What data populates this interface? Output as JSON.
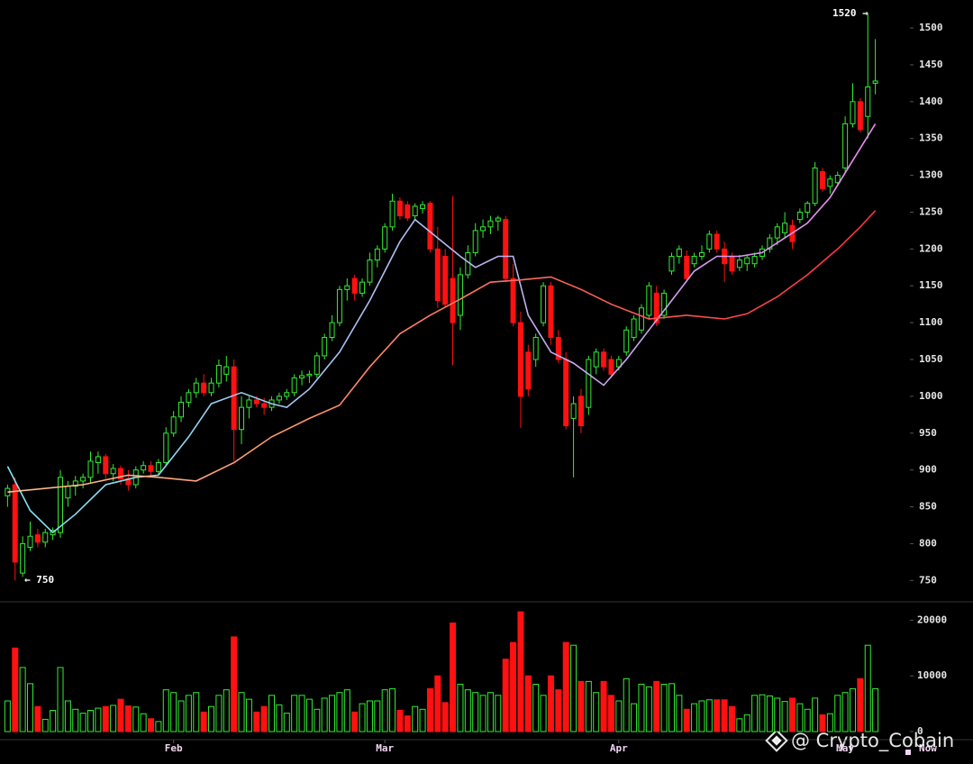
{
  "chart_data": {
    "type": "candlestick",
    "xlim": [
      -1,
      116
    ],
    "xticks": [
      {
        "value": 22,
        "label": "Feb"
      },
      {
        "value": 50,
        "label": "Mar"
      },
      {
        "value": 81,
        "label": "Apr"
      },
      {
        "value": 111,
        "label": "May"
      }
    ],
    "ylim": [
      721,
      1538
    ],
    "yticks": [
      750,
      800,
      850,
      900,
      950,
      1000,
      1050,
      1100,
      1150,
      1200,
      1250,
      1300,
      1350,
      1400,
      1450,
      1500
    ],
    "up_color": "#33ee33",
    "down_color": "#ff1111",
    "open": [
      865,
      880,
      760,
      795,
      812,
      802,
      812,
      815,
      862,
      878,
      885,
      890,
      910,
      918,
      895,
      902,
      888,
      880,
      900,
      906,
      898,
      910,
      950,
      972,
      992,
      1005,
      1018,
      1005,
      1018,
      1030,
      1040,
      955,
      985,
      995,
      990,
      985,
      995,
      1000,
      1005,
      1025,
      1028,
      1030,
      1055,
      1080,
      1100,
      1145,
      1160,
      1140,
      1155,
      1185,
      1200,
      1230,
      1265,
      1260,
      1245,
      1255,
      1262,
      1200,
      1190,
      1160,
      1110,
      1165,
      1195,
      1225,
      1230,
      1238,
      1240,
      1160,
      1100,
      1060,
      1050,
      1100,
      1150,
      1080,
      1050,
      970,
      1000,
      985,
      1040,
      1060,
      1050,
      1040,
      1060,
      1080,
      1090,
      1110,
      1140,
      1110,
      1170,
      1190,
      1190,
      1180,
      1190,
      1200,
      1220,
      1200,
      1190,
      1175,
      1180,
      1180,
      1190,
      1200,
      1215,
      1222,
      1232,
      1240,
      1250,
      1262,
      1305,
      1285,
      1290,
      1310,
      1370,
      1400,
      1380,
      1425
    ],
    "high": [
      880,
      890,
      810,
      830,
      820,
      820,
      822,
      900,
      885,
      892,
      895,
      925,
      925,
      922,
      908,
      906,
      900,
      905,
      912,
      912,
      915,
      958,
      980,
      1000,
      1010,
      1025,
      1030,
      1025,
      1050,
      1055,
      1050,
      1000,
      1000,
      1000,
      998,
      1000,
      1005,
      1010,
      1030,
      1035,
      1035,
      1060,
      1085,
      1110,
      1150,
      1160,
      1165,
      1160,
      1195,
      1205,
      1235,
      1275,
      1270,
      1265,
      1262,
      1265,
      1265,
      1230,
      1200,
      1272,
      1175,
      1205,
      1235,
      1240,
      1245,
      1245,
      1245,
      1180,
      1115,
      1070,
      1085,
      1155,
      1155,
      1090,
      1060,
      1000,
      1010,
      1055,
      1065,
      1065,
      1055,
      1055,
      1095,
      1110,
      1125,
      1155,
      1150,
      1145,
      1195,
      1205,
      1198,
      1195,
      1205,
      1225,
      1225,
      1210,
      1195,
      1192,
      1192,
      1195,
      1205,
      1220,
      1235,
      1250,
      1240,
      1255,
      1265,
      1318,
      1310,
      1300,
      1305,
      1380,
      1425,
      1405,
      1520,
      1485
    ],
    "low": [
      850,
      750,
      755,
      790,
      795,
      795,
      805,
      808,
      850,
      865,
      875,
      882,
      895,
      888,
      885,
      880,
      872,
      875,
      895,
      890,
      894,
      905,
      945,
      965,
      985,
      998,
      1000,
      1000,
      1012,
      1020,
      912,
      935,
      970,
      985,
      975,
      980,
      990,
      995,
      1000,
      1015,
      1018,
      1025,
      1050,
      1075,
      1095,
      1130,
      1130,
      1135,
      1150,
      1175,
      1195,
      1225,
      1240,
      1238,
      1240,
      1248,
      1195,
      1120,
      1120,
      1042,
      1090,
      1160,
      1190,
      1215,
      1220,
      1225,
      1155,
      1095,
      957,
      1000,
      1040,
      1095,
      1070,
      1045,
      955,
      890,
      950,
      975,
      1030,
      1035,
      1025,
      1035,
      1055,
      1075,
      1085,
      1105,
      1095,
      1105,
      1165,
      1180,
      1155,
      1175,
      1185,
      1195,
      1195,
      1155,
      1165,
      1170,
      1170,
      1175,
      1185,
      1195,
      1205,
      1215,
      1200,
      1235,
      1242,
      1258,
      1278,
      1275,
      1285,
      1305,
      1365,
      1358,
      1350,
      1410
    ],
    "close": [
      875,
      775,
      800,
      810,
      802,
      815,
      818,
      890,
      878,
      885,
      890,
      912,
      918,
      895,
      902,
      888,
      880,
      900,
      906,
      898,
      910,
      950,
      972,
      992,
      1005,
      1018,
      1005,
      1018,
      1042,
      1040,
      955,
      985,
      995,
      990,
      985,
      995,
      1000,
      1005,
      1025,
      1028,
      1030,
      1055,
      1080,
      1100,
      1145,
      1150,
      1140,
      1155,
      1185,
      1200,
      1230,
      1265,
      1245,
      1242,
      1258,
      1260,
      1200,
      1130,
      1125,
      1100,
      1165,
      1195,
      1225,
      1230,
      1238,
      1242,
      1160,
      1100,
      1000,
      1010,
      1080,
      1150,
      1080,
      1050,
      960,
      990,
      960,
      1050,
      1060,
      1040,
      1030,
      1050,
      1090,
      1105,
      1120,
      1150,
      1100,
      1140,
      1190,
      1200,
      1160,
      1190,
      1195,
      1220,
      1200,
      1180,
      1170,
      1185,
      1188,
      1190,
      1200,
      1215,
      1230,
      1235,
      1210,
      1250,
      1262,
      1310,
      1282,
      1295,
      1300,
      1370,
      1400,
      1362,
      1420,
      1428
    ],
    "moving_averages": [
      {
        "x": [
          0,
          3,
          6,
          9,
          13,
          17,
          20,
          24,
          27,
          31,
          35,
          37,
          40,
          44,
          48,
          52,
          54,
          57,
          60,
          62,
          65,
          67,
          69,
          72,
          75,
          79,
          82,
          85,
          88,
          91,
          94,
          97,
          100,
          103,
          106,
          109,
          112,
          115
        ],
        "values": [
          905,
          845,
          815,
          840,
          880,
          890,
          893,
          945,
          990,
          1005,
          990,
          985,
          1010,
          1060,
          1130,
          1210,
          1240,
          1215,
          1190,
          1175,
          1190,
          1190,
          1110,
          1060,
          1045,
          1015,
          1050,
          1090,
          1130,
          1170,
          1190,
          1190,
          1195,
          1215,
          1235,
          1270,
          1320,
          1370
        ],
        "colors": [
          "#7fe6f2",
          "#ec8cf0"
        ]
      },
      {
        "x": [
          0,
          10,
          16,
          20,
          25,
          30,
          35,
          40,
          44,
          48,
          52,
          56,
          60,
          64,
          68,
          72,
          76,
          80,
          85,
          90,
          95,
          98,
          102,
          106,
          110,
          113,
          115
        ],
        "values": [
          870,
          880,
          893,
          890,
          885,
          910,
          945,
          970,
          988,
          1040,
          1085,
          1110,
          1132,
          1155,
          1158,
          1162,
          1145,
          1125,
          1105,
          1110,
          1105,
          1112,
          1135,
          1165,
          1200,
          1230,
          1252
        ],
        "colors": [
          "#ffc48a",
          "#ff3040"
        ]
      }
    ],
    "volume": {
      "values": [
        5500,
        15000,
        11500,
        8600,
        4500,
        2200,
        3800,
        11500,
        5500,
        4000,
        3300,
        3800,
        4200,
        4500,
        4700,
        5800,
        4600,
        4400,
        3200,
        2300,
        1800,
        7500,
        7000,
        5500,
        6500,
        7000,
        3500,
        4500,
        6500,
        7500,
        17000,
        7000,
        5800,
        3500,
        4500,
        6500,
        4800,
        3300,
        6500,
        6500,
        5800,
        4000,
        6000,
        6500,
        7000,
        7500,
        3500,
        5000,
        5500,
        5500,
        7500,
        7700,
        3800,
        2800,
        4500,
        4000,
        7700,
        10000,
        5200,
        19500,
        8500,
        7500,
        7000,
        6500,
        7000,
        6500,
        13000,
        16000,
        21500,
        10000,
        8500,
        6500,
        10000,
        7500,
        16000,
        15500,
        9000,
        9000,
        7000,
        9000,
        6500,
        5500,
        9500,
        5000,
        8500,
        8000,
        9000,
        8500,
        8600,
        6500,
        4000,
        5000,
        5500,
        5700,
        5700,
        5700,
        4500,
        2300,
        3000,
        6500,
        6600,
        6400,
        6000,
        5400,
        6000,
        5000,
        4000,
        6000,
        3000,
        3200,
        6500,
        7000,
        7700,
        9500,
        15500,
        7700
      ],
      "ylim": [
        0,
        22000
      ],
      "yticks": [
        0,
        10000,
        20000
      ]
    },
    "annotations": [
      {
        "text": "1520 →"
      },
      {
        "text": "← 750"
      },
      {
        "text": "Now"
      }
    ],
    "watermark": "@ Crypto_Cobain"
  }
}
